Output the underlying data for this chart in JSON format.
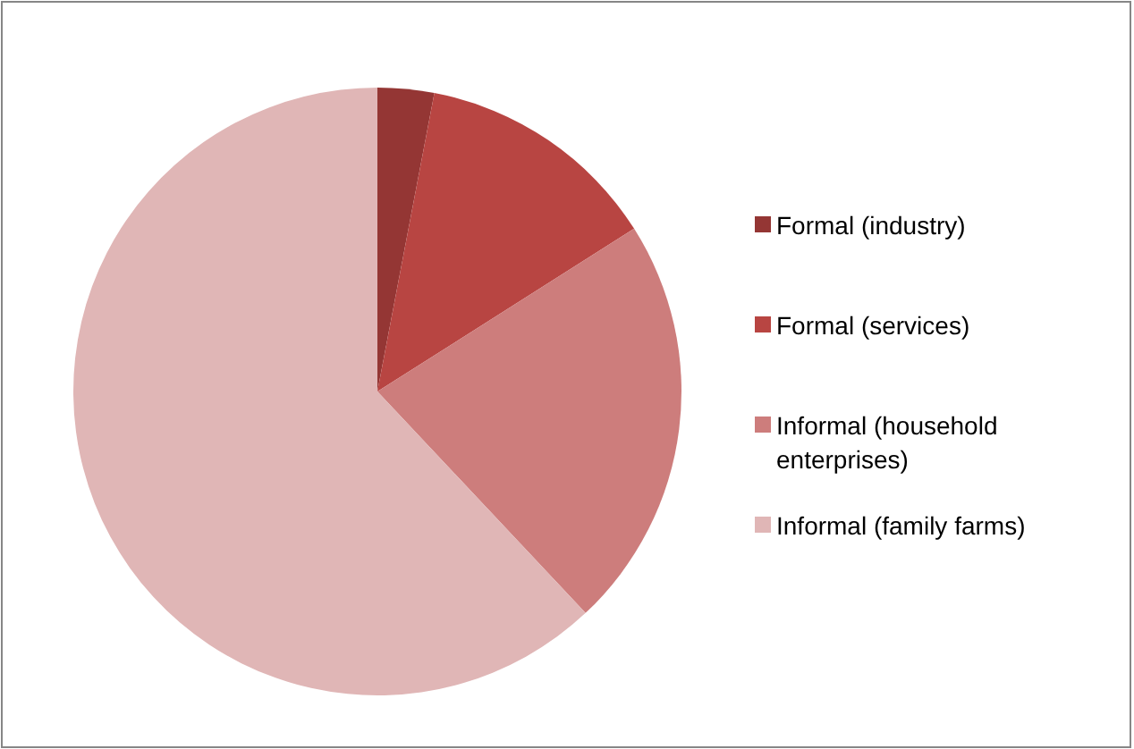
{
  "chart_data": {
    "type": "pie",
    "categories": [
      "Formal (industry)",
      "Formal (services)",
      "Informal (household enterprises)",
      "Informal (family farms)"
    ],
    "values": [
      3,
      13,
      22,
      62
    ],
    "colors": [
      "#943634",
      "#b84542",
      "#cd7d7c",
      "#e0b6b6"
    ],
    "legend": "right"
  }
}
